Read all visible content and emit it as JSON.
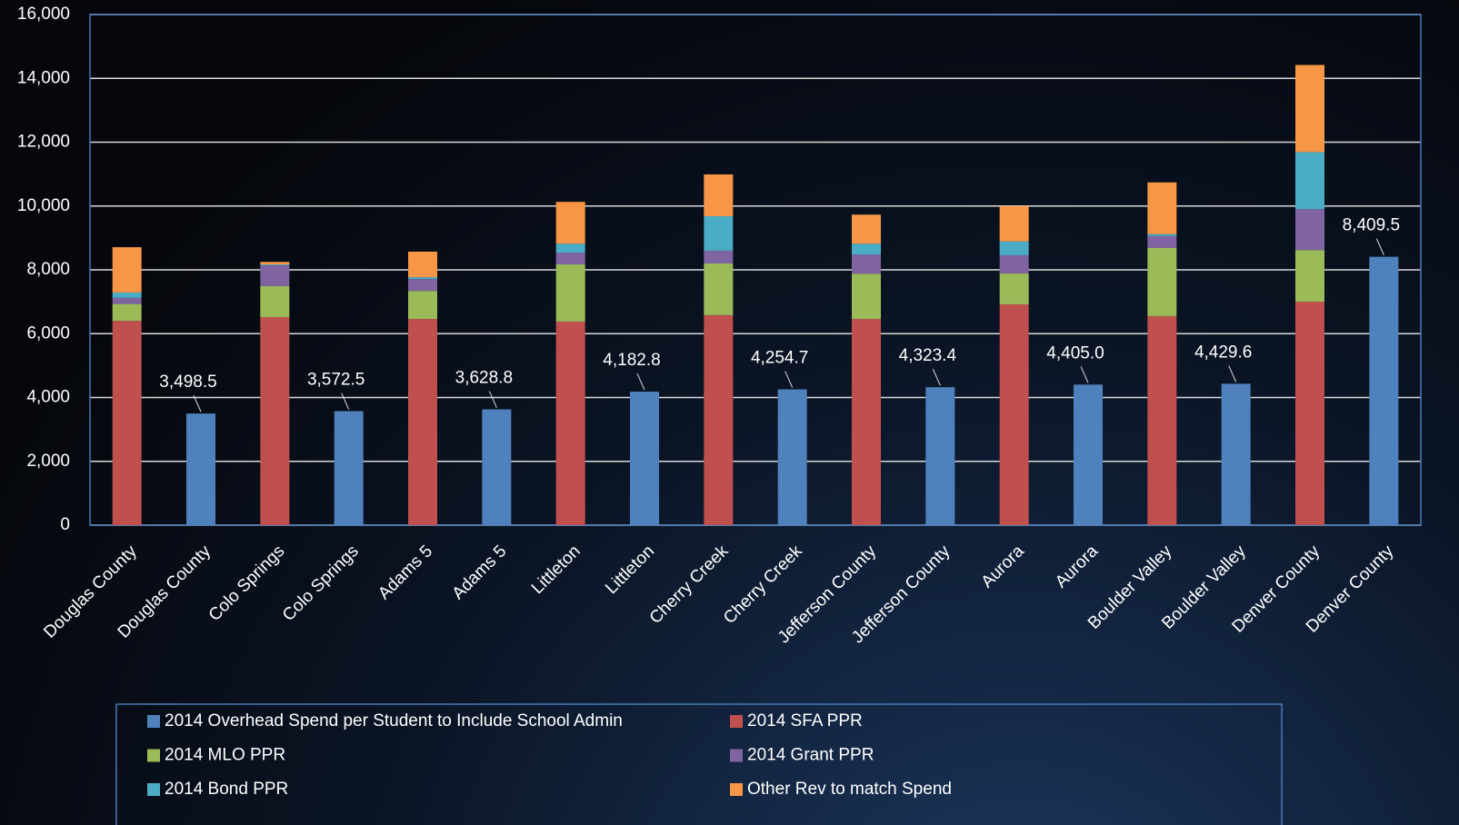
{
  "chart_data": {
    "type": "stacked_bar",
    "categories": [
      "Douglas County",
      "Douglas County",
      "Colo Springs",
      "Colo Springs",
      "Adams 5",
      "Adams 5",
      "Littleton",
      "Littleton",
      "Cherry Creek",
      "Cherry Creek",
      "Jefferson County",
      "Jefferson County",
      "Aurora",
      "Aurora",
      "Boulder Valley",
      "Boulder Valley",
      "Denver County",
      "Denver County"
    ],
    "series": [
      {
        "name": "2014 Overhead Spend per Student to Include School Admin",
        "color": "#4f81bd",
        "values": [
          null,
          3498.5,
          null,
          3572.5,
          null,
          3628.8,
          null,
          4182.8,
          null,
          4254.7,
          null,
          4323.4,
          null,
          4405.0,
          null,
          4429.6,
          null,
          8409.5
        ],
        "value_labels": [
          null,
          "3,498.5",
          null,
          "3,572.5",
          null,
          "3,628.8",
          null,
          "4,182.8",
          null,
          "4,254.7",
          null,
          "4,323.4",
          null,
          "4,405.0",
          null,
          "4,429.6",
          null,
          "8,409.5"
        ]
      },
      {
        "name": "2014 SFA PPR",
        "color": "#c0504d",
        "values": [
          6400,
          null,
          6520,
          null,
          6460,
          null,
          6380,
          null,
          6580,
          null,
          6460,
          null,
          6920,
          null,
          6550,
          null,
          7000,
          null
        ]
      },
      {
        "name": "2014 MLO PPR",
        "color": "#9bbb59",
        "values": [
          530,
          null,
          970,
          null,
          880,
          null,
          1790,
          null,
          1620,
          null,
          1420,
          null,
          970,
          null,
          2140,
          null,
          1620,
          null
        ]
      },
      {
        "name": "2014 Grant PPR",
        "color": "#8064a2",
        "values": [
          190,
          null,
          650,
          null,
          370,
          null,
          370,
          null,
          400,
          null,
          600,
          null,
          570,
          null,
          370,
          null,
          1280,
          null
        ]
      },
      {
        "name": "2014 Bond PPR",
        "color": "#4bacc6",
        "values": [
          170,
          null,
          30,
          null,
          60,
          null,
          280,
          null,
          1080,
          null,
          340,
          null,
          430,
          null,
          60,
          null,
          1790,
          null
        ]
      },
      {
        "name": "Other Rev to match Spend",
        "color": "#f79646",
        "values": [
          1420,
          null,
          80,
          null,
          800,
          null,
          1310,
          null,
          1310,
          null,
          910,
          null,
          1110,
          null,
          1620,
          null,
          2730,
          null
        ]
      }
    ],
    "ylim": [
      0,
      16000
    ],
    "yticks": [
      0,
      {
        "value": 2000,
        "label": "2,000"
      },
      {
        "value": 4000,
        "label": "4,000"
      },
      {
        "value": 6000,
        "label": "6,000"
      },
      {
        "value": 8000,
        "label": "8,000"
      },
      {
        "value": 10000,
        "label": "10,000"
      },
      {
        "value": 12000,
        "label": "12,000"
      },
      {
        "value": 14000,
        "label": "14,000"
      },
      {
        "value": 16000,
        "label": "16,000"
      }
    ],
    "grid": true,
    "legend": "bottom"
  }
}
